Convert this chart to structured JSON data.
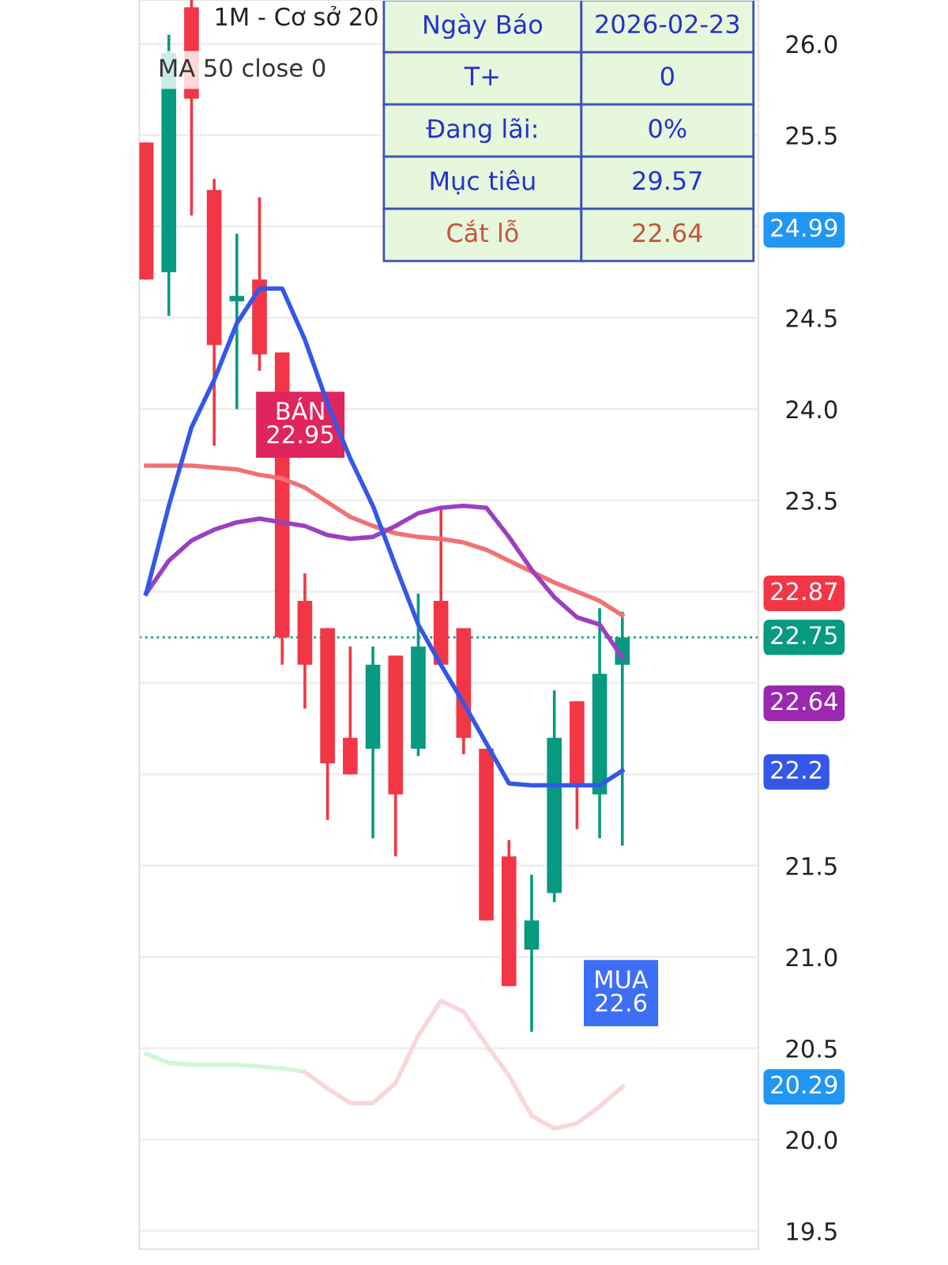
{
  "chart_data": {
    "type": "candlestick",
    "title": "1M - Cơ sở 20",
    "categories": [
      null,
      null,
      null,
      null,
      null,
      null,
      null,
      null,
      null,
      null,
      null,
      null,
      null,
      null,
      null,
      null,
      null,
      null,
      null,
      null,
      null,
      null
    ],
    "ohlc": [
      [
        25.46,
        25.46,
        24.71,
        24.71
      ],
      [
        24.75,
        26.05,
        24.51,
        25.95
      ],
      [
        26.2,
        26.24,
        25.06,
        25.7
      ],
      [
        25.2,
        25.26,
        23.8,
        24.35
      ],
      [
        24.59,
        24.96,
        24.0,
        24.62
      ],
      [
        24.71,
        25.16,
        24.21,
        24.3
      ],
      [
        24.31,
        24.31,
        22.6,
        22.75
      ],
      [
        22.95,
        23.1,
        22.36,
        22.6
      ],
      [
        22.8,
        22.8,
        21.75,
        22.06
      ],
      [
        22.2,
        22.7,
        22.0,
        22.0
      ],
      [
        22.14,
        22.7,
        21.65,
        22.6
      ],
      [
        22.65,
        22.65,
        21.55,
        21.89
      ],
      [
        22.14,
        22.99,
        22.1,
        22.7
      ],
      [
        22.95,
        23.45,
        22.6,
        22.6
      ],
      [
        22.8,
        22.8,
        22.11,
        22.2
      ],
      [
        22.14,
        22.14,
        21.2,
        21.2
      ],
      [
        21.55,
        21.64,
        20.84,
        20.84
      ],
      [
        21.04,
        21.45,
        20.59,
        21.2
      ],
      [
        21.35,
        22.46,
        21.3,
        22.2
      ],
      [
        22.4,
        22.4,
        21.7,
        21.94
      ],
      [
        21.89,
        22.91,
        21.65,
        22.55
      ],
      [
        22.6,
        22.89,
        21.61,
        22.75
      ]
    ],
    "colors": [
      "#f23645",
      "#089981",
      "#f23645",
      "#f23645",
      "#089981",
      "#f23645",
      "#f23645",
      "#f23645",
      "#f23645",
      "#f23645",
      "#089981",
      "#f23645",
      "#089981",
      "#f23645",
      "#f23645",
      "#f23645",
      "#f23645",
      "#089981",
      "#089981",
      "#f23645",
      "#089981",
      "#089981"
    ],
    "series": [
      {
        "type": "line",
        "color": "#d2f5d8",
        "values": [
          20.47,
          20.42,
          20.41,
          20.41,
          20.41,
          20.4,
          20.39,
          20.37,
          null,
          null,
          null,
          null,
          null,
          null,
          null,
          null,
          null,
          null,
          null,
          null,
          null,
          null
        ]
      },
      {
        "type": "line",
        "color": "#f9d6d8",
        "values": [
          null,
          null,
          null,
          null,
          null,
          null,
          null,
          20.37,
          20.28,
          20.2,
          20.2,
          20.31,
          20.57,
          20.76,
          20.7,
          20.52,
          20.35,
          20.13,
          20.06,
          20.09,
          20.18,
          20.29
        ]
      },
      {
        "type": "line",
        "color": "#f07272",
        "values": [
          23.69,
          23.69,
          23.69,
          23.68,
          23.67,
          23.64,
          23.62,
          23.57,
          23.49,
          23.41,
          23.36,
          23.32,
          23.3,
          23.29,
          23.27,
          23.23,
          23.17,
          23.11,
          23.05,
          23.0,
          22.95,
          22.87
        ]
      },
      {
        "type": "line",
        "color": "#9c3fc0",
        "values": [
          22.99,
          23.17,
          23.28,
          23.34,
          23.38,
          23.4,
          23.38,
          23.36,
          23.31,
          23.29,
          23.3,
          23.36,
          23.43,
          23.46,
          23.47,
          23.46,
          23.3,
          23.12,
          22.97,
          22.86,
          22.82,
          22.64
        ]
      },
      {
        "type": "line",
        "color": "#3358e8",
        "values": [
          22.99,
          23.47,
          23.9,
          24.16,
          24.47,
          24.66,
          24.66,
          24.38,
          24.03,
          23.73,
          23.47,
          23.14,
          22.82,
          22.6,
          22.39,
          22.17,
          21.95,
          21.94,
          21.94,
          21.94,
          21.94,
          22.02
        ]
      }
    ],
    "ylim": [
      19.4,
      26.24
    ],
    "yticks": [
      19.5,
      {
        "value": 20.0,
        "label": "20.0"
      },
      20.5,
      {
        "value": 21.0,
        "label": "21.0"
      },
      21.5,
      {
        "value": 22.0,
        "label": null
      },
      {
        "value": 22.5,
        "label": null
      },
      {
        "value": 23.0,
        "label": null
      },
      23.5,
      {
        "value": 24.0,
        "label": "24.0"
      },
      24.5,
      {
        "value": 25.0,
        "label": null
      },
      25.5,
      {
        "value": 26.0,
        "label": "26.0"
      }
    ],
    "grid": "y",
    "ref_lines": [
      {
        "axis": "y",
        "value": 22.75,
        "label": "22.75",
        "color": "#089981",
        "line_style": "dotted"
      }
    ],
    "annotations": [
      "MA 50 close 0",
      "Ngày Báo",
      "2026-02-23",
      "T+",
      "0",
      "Đang lãi:",
      "0%",
      "Mục tiêu",
      "29.57",
      "Cắt lỗ",
      "22.64",
      "BÁN\n22.95",
      "MUA\n22.6",
      "22.2",
      "24.99",
      "20.29",
      "22.87",
      "22.64"
    ]
  }
}
